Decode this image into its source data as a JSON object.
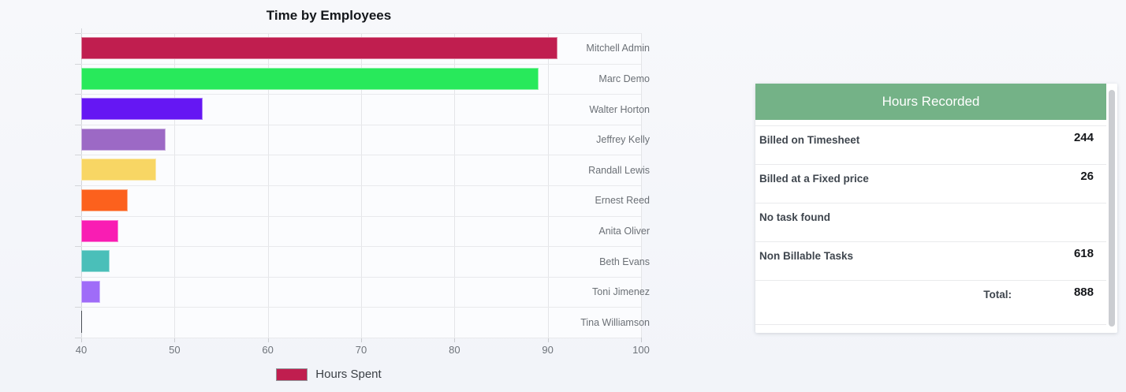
{
  "chart_data": {
    "type": "bar",
    "orientation": "horizontal",
    "title": "Time by Employees",
    "series_name": "Hours Spent",
    "categories": [
      "Mitchell Admin",
      "Marc Demo",
      "Walter Horton",
      "Jeffrey Kelly",
      "Randall Lewis",
      "Ernest Reed",
      "Anita Oliver",
      "Beth Evans",
      "Toni Jimenez",
      "Tina Williamson"
    ],
    "values": [
      91,
      89,
      53,
      49,
      48,
      45,
      44,
      43,
      42,
      40
    ],
    "bar_colors": [
      "#c01e4f",
      "#28e95b",
      "#6517f3",
      "#9c69c5",
      "#f8d664",
      "#fc611d",
      "#f91db3",
      "#4abfb9",
      "#9f6cf8",
      "#4a4f55"
    ],
    "xlabel": "",
    "ylabel": "",
    "xlim": [
      40,
      100
    ],
    "x_ticks": [
      40,
      50,
      60,
      70,
      80,
      90,
      100
    ],
    "grid": true,
    "legend": {
      "label": "Hours Spent",
      "color": "#c01e4f",
      "border": "#919499",
      "position": "bottom"
    }
  },
  "panel": {
    "title": "Hours Recorded",
    "header_color": "#74b287",
    "rows": [
      {
        "label": "Billed on Timesheet",
        "value": "244",
        "is_total": false
      },
      {
        "label": "Billed at a Fixed price",
        "value": "26",
        "is_total": false
      },
      {
        "label": "No task found",
        "value": "",
        "is_total": false
      },
      {
        "label": "Non Billable Tasks",
        "value": "618",
        "is_total": false
      },
      {
        "label": "Total:",
        "value": "888",
        "is_total": true
      }
    ]
  }
}
